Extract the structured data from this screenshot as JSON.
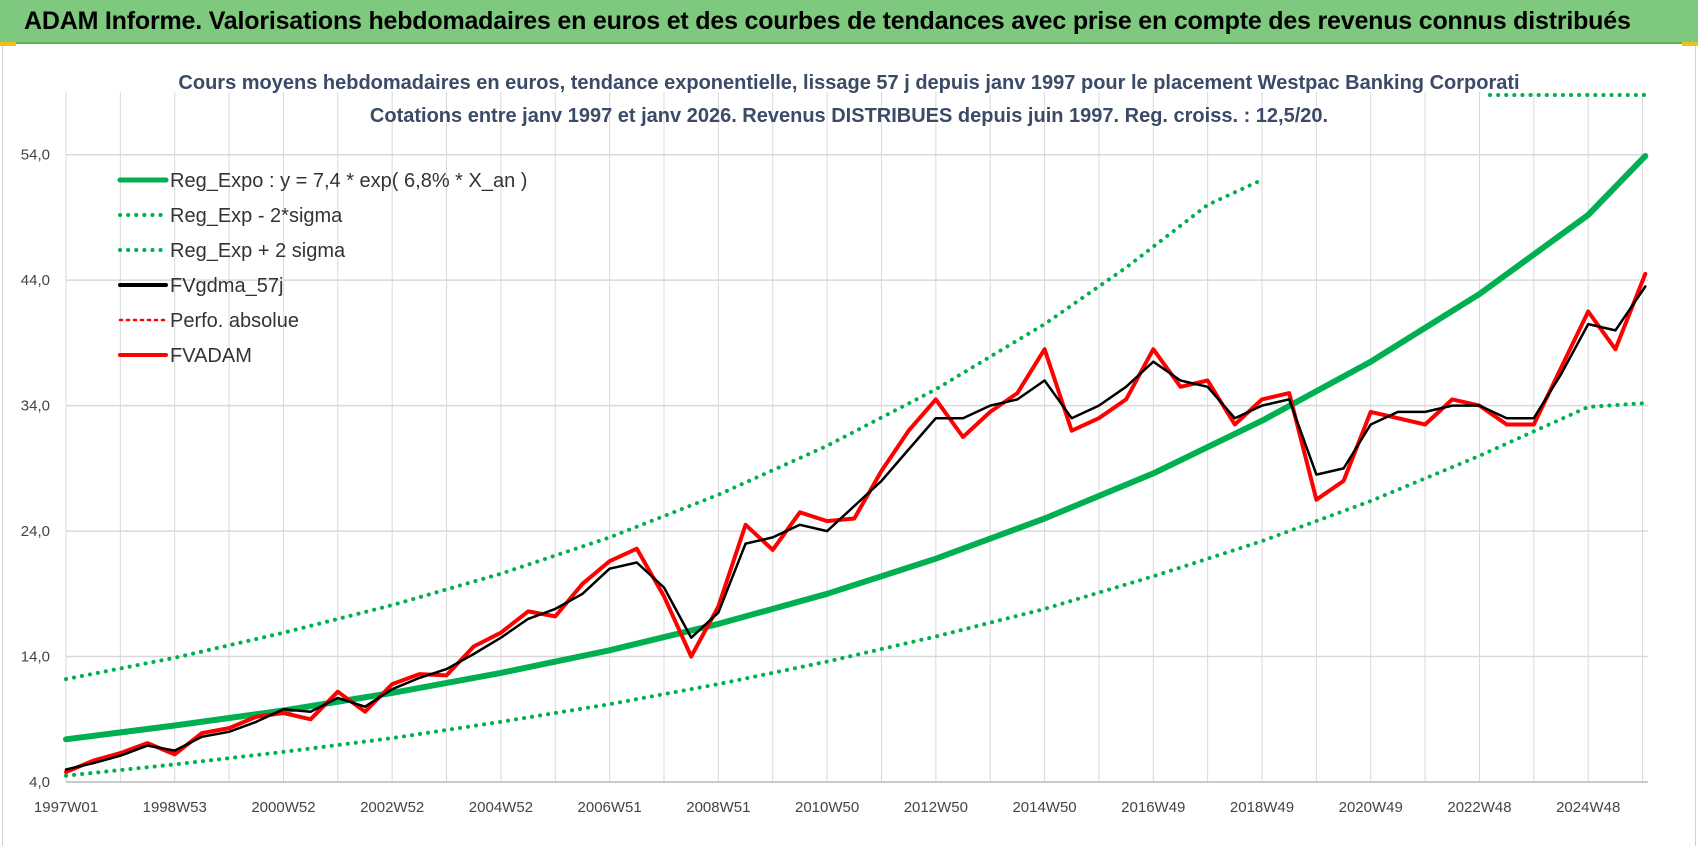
{
  "header": {
    "title": "ADAM Informe. Valorisations hebdomadaires en euros et des courbes de tendances avec prise en compte des revenus connus distribués"
  },
  "colors": {
    "reg": "#00b050",
    "fvadam": "#ff0000",
    "fvgdma": "#000000",
    "grid": "#d9d9d9",
    "title_bar": "#7fc97f"
  },
  "chart_data": {
    "type": "line",
    "title": "Cours moyens hebdomadaires en euros, tendance exponentielle, lissage 57 j depuis janv 1997  pour le placement Westpac Banking Corporati",
    "subtitle": "Cotations entre janv 1997 et janv 2026. Revenus DISTRIBUES depuis juin 1997. Reg. croiss. : 12,5/20.",
    "xlabel": "",
    "ylabel": "",
    "xlim": [
      1997.0,
      2026.1
    ],
    "ylim": [
      4,
      59
    ],
    "y_ticks": [
      "4,0",
      "14,0",
      "24,0",
      "34,0",
      "44,0",
      "54,0"
    ],
    "y_tick_values": [
      4,
      14,
      24,
      34,
      44,
      54
    ],
    "x_ticks": [
      "1997W01",
      "1998W53",
      "2000W52",
      "2002W52",
      "2004W52",
      "2006W51",
      "2008W51",
      "2010W50",
      "2012W50",
      "2014W50",
      "2016W49",
      "2018W49",
      "2020W49",
      "2022W48",
      "2024W48"
    ],
    "x_tick_values": [
      1997.0,
      1999.0,
      2001.0,
      2003.0,
      2005.0,
      2007.0,
      2009.0,
      2011.0,
      2013.0,
      2015.0,
      2017.0,
      2019.0,
      2021.0,
      2023.0,
      2025.0
    ],
    "grid": true,
    "legend_position": "top-left",
    "legend": [
      "Reg_Expo : y = 7,4 * exp( 6,8% *  X_an )",
      "Reg_Exp - 2*sigma",
      "Reg_Exp + 2 sigma",
      "FVgdma_57j",
      "Perfo. absolue",
      "FVADAM"
    ],
    "series": [
      {
        "name": "Reg_Expo : y = 7,4 * exp( 6,8% *  X_an )",
        "style": "solid",
        "x": [
          1997.0,
          1999.0,
          2001.0,
          2003.0,
          2005.0,
          2007.0,
          2009.0,
          2011.0,
          2013.0,
          2015.0,
          2017.0,
          2019.0,
          2021.0,
          2023.0,
          2025.0,
          2026.05
        ],
        "values": [
          7.4,
          8.5,
          9.7,
          11.1,
          12.7,
          14.5,
          16.6,
          19.0,
          21.8,
          25.0,
          28.6,
          32.8,
          37.5,
          42.9,
          49.2,
          53.9
        ]
      },
      {
        "name": "Reg_Exp - 2*sigma",
        "style": "dotted",
        "x": [
          1997.0,
          1999.0,
          2001.0,
          2003.0,
          2005.0,
          2007.0,
          2009.0,
          2011.0,
          2013.0,
          2015.0,
          2017.0,
          2019.0,
          2021.0,
          2023.0,
          2025.0,
          2026.05
        ],
        "values": [
          4.5,
          5.4,
          6.4,
          7.5,
          8.8,
          10.2,
          11.8,
          13.6,
          15.6,
          17.8,
          20.4,
          23.2,
          26.4,
          30.0,
          33.9,
          34.2
        ]
      },
      {
        "name": "Reg_Exp + 2 sigma",
        "style": "dotted",
        "x": [
          1997.0,
          1999.0,
          2001.0,
          2003.0,
          2005.0,
          2007.0,
          2009.0,
          2011.0,
          2013.0,
          2015.0,
          2016.5,
          2018.0,
          2019.0
        ],
        "values": [
          12.2,
          13.9,
          15.9,
          18.1,
          20.6,
          23.5,
          26.9,
          30.8,
          35.3,
          40.5,
          45.0,
          50.0,
          52.0
        ]
      },
      {
        "name": "FVgdma_57j",
        "style": "solid",
        "x": [
          1997.0,
          1997.5,
          1998.0,
          1998.5,
          1999.0,
          1999.5,
          2000.0,
          2000.5,
          2001.0,
          2001.5,
          2002.0,
          2002.5,
          2003.0,
          2003.5,
          2004.0,
          2004.5,
          2005.0,
          2005.5,
          2006.0,
          2006.5,
          2007.0,
          2007.5,
          2008.0,
          2008.5,
          2009.0,
          2009.5,
          2010.0,
          2010.5,
          2011.0,
          2011.5,
          2012.0,
          2012.5,
          2013.0,
          2013.5,
          2014.0,
          2014.5,
          2015.0,
          2015.5,
          2016.0,
          2016.5,
          2017.0,
          2017.5,
          2018.0,
          2018.5,
          2019.0,
          2019.5,
          2020.0,
          2020.5,
          2021.0,
          2021.5,
          2022.0,
          2022.5,
          2023.0,
          2023.5,
          2024.0,
          2024.5,
          2025.0,
          2025.5,
          2026.05
        ],
        "values": [
          5.0,
          5.5,
          6.1,
          6.9,
          6.5,
          7.6,
          8.0,
          8.8,
          9.8,
          9.6,
          10.7,
          10.0,
          11.4,
          12.3,
          13.0,
          14.2,
          15.5,
          17.0,
          17.8,
          19.0,
          21.0,
          21.5,
          19.5,
          15.5,
          17.5,
          23.0,
          23.5,
          24.5,
          24.0,
          26.0,
          28.0,
          30.5,
          33.0,
          33.0,
          34.0,
          34.5,
          36.0,
          33.0,
          34.0,
          35.5,
          37.5,
          36.0,
          35.5,
          33.0,
          34.0,
          34.5,
          28.5,
          29.0,
          32.5,
          33.5,
          33.5,
          34.0,
          34.0,
          33.0,
          33.0,
          36.5,
          40.5,
          40.0,
          43.5
        ]
      },
      {
        "name": "FVADAM",
        "style": "solid",
        "x": [
          1997.0,
          1997.5,
          1998.0,
          1998.5,
          1999.0,
          1999.5,
          2000.0,
          2000.5,
          2001.0,
          2001.5,
          2002.0,
          2002.5,
          2003.0,
          2003.5,
          2004.0,
          2004.5,
          2005.0,
          2005.5,
          2006.0,
          2006.5,
          2007.0,
          2007.5,
          2008.0,
          2008.5,
          2009.0,
          2009.5,
          2010.0,
          2010.5,
          2011.0,
          2011.5,
          2012.0,
          2012.5,
          2013.0,
          2013.5,
          2014.0,
          2014.5,
          2015.0,
          2015.5,
          2016.0,
          2016.5,
          2017.0,
          2017.5,
          2018.0,
          2018.5,
          2019.0,
          2019.5,
          2020.0,
          2020.5,
          2021.0,
          2021.5,
          2022.0,
          2022.5,
          2023.0,
          2023.5,
          2024.0,
          2024.5,
          2025.0,
          2025.5,
          2026.05
        ],
        "values": [
          4.8,
          5.7,
          6.3,
          7.1,
          6.2,
          7.9,
          8.3,
          9.2,
          9.5,
          9.0,
          11.2,
          9.6,
          11.8,
          12.6,
          12.5,
          14.8,
          15.9,
          17.6,
          17.2,
          19.8,
          21.6,
          22.6,
          18.8,
          14.0,
          18.0,
          24.5,
          22.5,
          25.5,
          24.8,
          25.0,
          28.8,
          32.0,
          34.5,
          31.5,
          33.5,
          35.0,
          38.5,
          32.0,
          33.0,
          34.5,
          38.5,
          35.5,
          36.0,
          32.5,
          34.5,
          35.0,
          26.5,
          28.0,
          33.5,
          33.0,
          32.5,
          34.5,
          34.0,
          32.5,
          32.5,
          37.0,
          41.5,
          38.5,
          44.5
        ]
      }
    ]
  }
}
